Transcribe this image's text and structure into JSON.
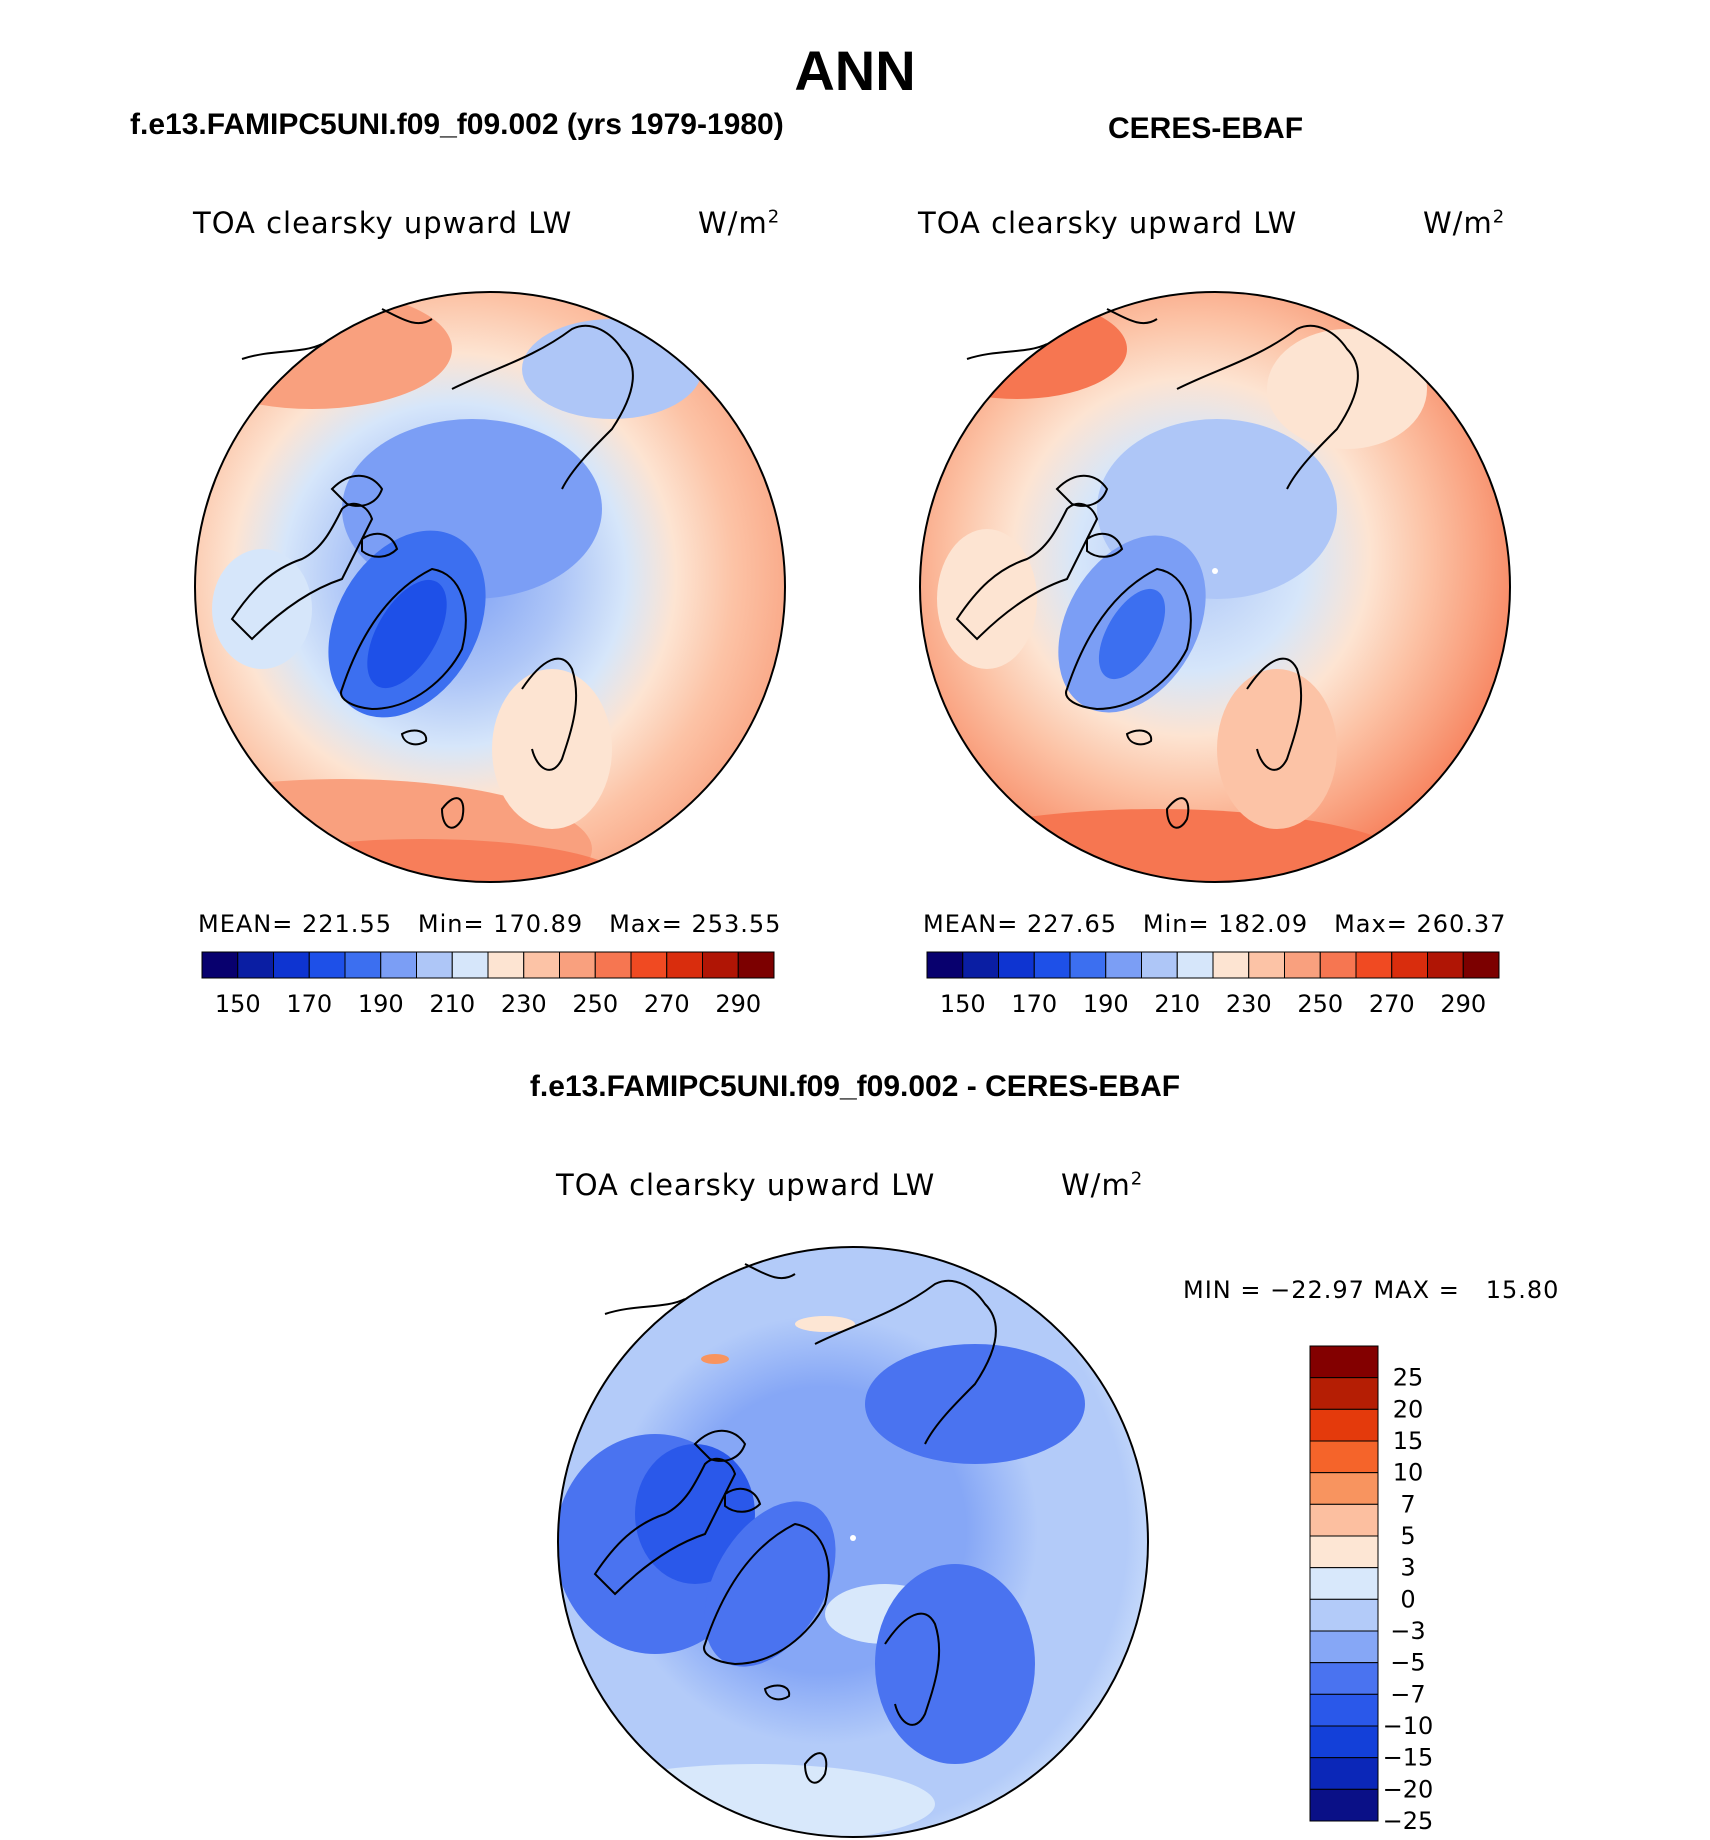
{
  "figure": {
    "title": "ANN",
    "left_title": "f.e13.FAMIPC5UNI.f09_f09.002 (yrs 1979-1980)",
    "right_title": "CERES-EBAF",
    "diff_title": "f.e13.FAMIPC5UNI.f09_f09.002 - CERES-EBAF"
  },
  "panels": {
    "model": {
      "variable": "TOA clearsky upward LW",
      "units_base": "W/m",
      "units_exp": "2",
      "mean_label": "MEAN=",
      "mean": "221.55",
      "min_label": "Min=",
      "min": "170.89",
      "max_label": "Max=",
      "max": "253.55"
    },
    "obs": {
      "variable": "TOA clearsky upward LW",
      "units_base": "W/m",
      "units_exp": "2",
      "mean_label": "MEAN=",
      "mean": "227.65",
      "min_label": "Min=",
      "min": "182.09",
      "max_label": "Max=",
      "max": "260.37"
    },
    "diff": {
      "variable": "TOA clearsky upward LW",
      "units_base": "W/m",
      "units_exp": "2",
      "minmax_text": "MIN = −22.97 MAX =   15.80"
    }
  },
  "colorbars": {
    "abs": {
      "colors": [
        "#08006e",
        "#0a1ea3",
        "#0e34d1",
        "#1e50e8",
        "#3c6ff0",
        "#7b9ef5",
        "#aec6f7",
        "#d6e6fa",
        "#fde4d2",
        "#fcc3a6",
        "#f9a07e",
        "#f67651",
        "#f04a22",
        "#d92d0d",
        "#b01505",
        "#7c0000"
      ],
      "labels": [
        "150",
        "170",
        "190",
        "210",
        "230",
        "250",
        "270",
        "290"
      ]
    },
    "diff": {
      "colors": [
        "#0a1087",
        "#0b27b8",
        "#1340d9",
        "#2a58ea",
        "#4a73f0",
        "#86a7f6",
        "#b3cbf9",
        "#d8e8fb",
        "#fde6d4",
        "#fcbfa0",
        "#f8945f",
        "#f5642a",
        "#e43a0c",
        "#b51e04",
        "#830000"
      ],
      "labels": [
        "25",
        "20",
        "15",
        "10",
        "7",
        "5",
        "3",
        "0",
        "−3",
        "−5",
        "−7",
        "−10",
        "−15",
        "−20",
        "−25"
      ]
    }
  }
}
